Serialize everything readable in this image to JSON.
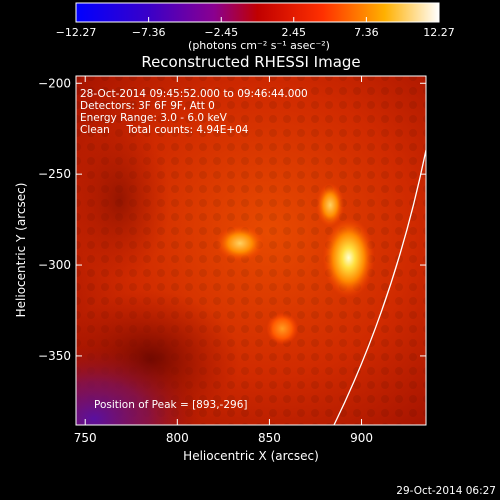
{
  "chart_data": {
    "type": "heatmap",
    "title": "Reconstructed RHESSI Image",
    "xlabel": "Heliocentric X (arcsec)",
    "ylabel": "Heliocentric Y (arcsec)",
    "xlim": [
      745,
      935
    ],
    "ylim": [
      -388,
      -196
    ],
    "x_ticks": [
      750,
      800,
      850,
      900
    ],
    "y_ticks": [
      -200,
      -250,
      -300,
      -350
    ],
    "colorbar": {
      "label": "(photons cm⁻² s⁻¹ asec⁻²)",
      "range": [
        -12.27,
        12.27
      ],
      "ticks": [
        "−12.27",
        "−7.36",
        "−2.45",
        "2.45",
        "7.36",
        "12.27"
      ]
    },
    "annotations": [
      "28-Oct-2014 09:45:52.000 to 09:46:44.000",
      "Detectors: 3F 6F 9F, Att 0",
      "Energy Range: 3.0 - 6.0 keV",
      "Clean     Total counts: 4.94E+04"
    ],
    "peak_label": "Position of Peak = [893,-296]",
    "peak": [
      893,
      -296
    ],
    "sources": [
      {
        "x": 893,
        "y": -296,
        "peak": 12.27
      },
      {
        "x": 834,
        "y": -288,
        "peak": 9.5
      },
      {
        "x": 883,
        "y": -267,
        "peak": 9.0
      },
      {
        "x": 857,
        "y": -335,
        "peak": 7.0
      }
    ]
  },
  "footer": {
    "timestamp": "29-Oct-2014 06:27"
  }
}
